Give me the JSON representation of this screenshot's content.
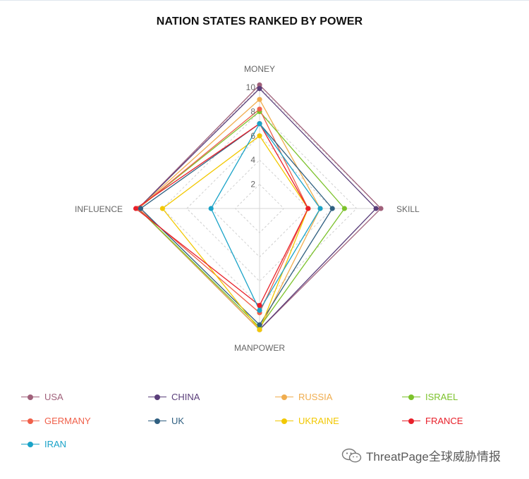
{
  "chart_data": {
    "type": "radar",
    "title": "NATION STATES RANKED BY POWER",
    "axes": [
      "MONEY",
      "SKILL",
      "MANPOWER",
      "INFLUENCE"
    ],
    "r_ticks": [
      "2",
      "4",
      "6",
      "8",
      "10"
    ],
    "r_max": 10,
    "series": [
      {
        "name": "USA",
        "color": "#a0607a",
        "values": [
          10.2,
          10,
          10,
          10
        ]
      },
      {
        "name": "CHINA",
        "color": "#5a3e7a",
        "values": [
          9.9,
          9.6,
          10,
          10
        ]
      },
      {
        "name": "RUSSIA",
        "color": "#f0ad4e",
        "values": [
          9,
          5,
          10,
          10
        ]
      },
      {
        "name": "ISRAEL",
        "color": "#7cc22b",
        "values": [
          8,
          7,
          9.8,
          10
        ]
      },
      {
        "name": "GERMANY",
        "color": "#f0604a",
        "values": [
          8.2,
          4,
          8.6,
          10
        ]
      },
      {
        "name": "UK",
        "color": "#2f5f80",
        "values": [
          7,
          6,
          9.6,
          9.8
        ]
      },
      {
        "name": "UKRAINE",
        "color": "#f2c800",
        "values": [
          6,
          4,
          10,
          8
        ]
      },
      {
        "name": "FRANCE",
        "color": "#e8202a",
        "values": [
          7,
          4,
          8,
          10.2
        ]
      },
      {
        "name": "IRAN",
        "color": "#1aa3c8",
        "values": [
          7,
          5,
          8.4,
          4
        ]
      }
    ],
    "grid": "dashed",
    "legend_position": "bottom"
  },
  "watermark": {
    "text": "ThreatPage全球威胁情报",
    "icon": "wechat-icon"
  }
}
